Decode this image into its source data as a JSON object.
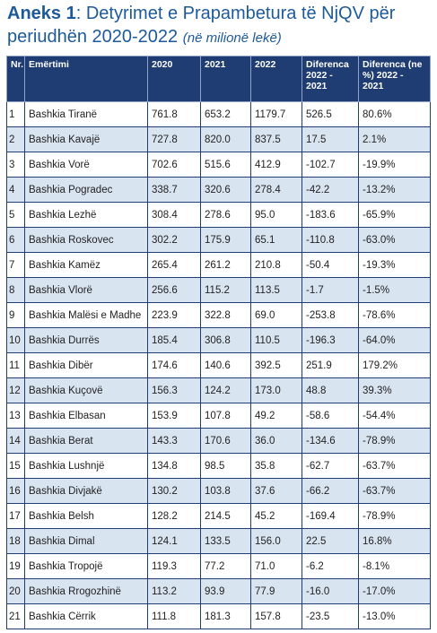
{
  "title": {
    "label": "Aneks 1",
    "text": ": Detyrimet e Prapambetura të NjQV për periudhën 2020-2022",
    "unit": "(në milionë lekë)"
  },
  "table": {
    "headers": [
      "Nr.",
      "Emërtimi",
      "2020",
      "2021",
      "2022",
      "Diferenca 2022 - 2021",
      "Diferenca (ne %) 2022 - 2021"
    ],
    "rows": [
      [
        "1",
        "Bashkia Tiranë",
        "761.8",
        "653.2",
        "1179.7",
        "526.5",
        "80.6%"
      ],
      [
        "2",
        "Bashkia Kavajë",
        "727.8",
        "820.0",
        "837.5",
        "17.5",
        "2.1%"
      ],
      [
        "3",
        "Bashkia Vorë",
        "702.6",
        "515.6",
        "412.9",
        "-102.7",
        "-19.9%"
      ],
      [
        "4",
        "Bashkia Pogradec",
        "338.7",
        "320.6",
        "278.4",
        "-42.2",
        "-13.2%"
      ],
      [
        "5",
        "Bashkia Lezhë",
        "308.4",
        "278.6",
        "95.0",
        "-183.6",
        "-65.9%"
      ],
      [
        "6",
        "Bashkia Roskovec",
        "302.2",
        "175.9",
        "65.1",
        "-110.8",
        "-63.0%"
      ],
      [
        "7",
        "Bashkia Kamëz",
        "265.4",
        "261.2",
        "210.8",
        "-50.4",
        "-19.3%"
      ],
      [
        "8",
        "Bashkia Vlorë",
        "256.6",
        "115.2",
        "113.5",
        "-1.7",
        "-1.5%"
      ],
      [
        "9",
        "Bashkia Malësi e Madhe",
        "223.9",
        "322.8",
        "69.0",
        "-253.8",
        "-78.6%"
      ],
      [
        "10",
        "Bashkia Durrës",
        "185.4",
        "306.8",
        "110.5",
        "-196.3",
        "-64.0%"
      ],
      [
        "11",
        "Bashkia Dibër",
        "174.6",
        "140.6",
        "392.5",
        "251.9",
        "179.2%"
      ],
      [
        "12",
        "Bashkia Kuçovë",
        "156.3",
        "124.2",
        "173.0",
        "48.8",
        "39.3%"
      ],
      [
        "13",
        "Bashkia Elbasan",
        "153.9",
        "107.8",
        "49.2",
        "-58.6",
        "-54.4%"
      ],
      [
        "14",
        "Bashkia Berat",
        "143.3",
        "170.6",
        "36.0",
        "-134.6",
        "-78.9%"
      ],
      [
        "15",
        "Bashkia Lushnjë",
        "134.8",
        "98.5",
        "35.8",
        "-62.7",
        "-63.7%"
      ],
      [
        "16",
        "Bashkia Divjakë",
        "130.2",
        "103.8",
        "37.6",
        "-66.2",
        "-63.7%"
      ],
      [
        "17",
        "Bashkia Belsh",
        "128.2",
        "214.5",
        "45.2",
        "-169.4",
        "-78.9%"
      ],
      [
        "18",
        "Bashkia Dimal",
        "124.1",
        "133.5",
        "156.0",
        "22.5",
        "16.8%"
      ],
      [
        "19",
        "Bashkia Tropojë",
        "119.3",
        "77.2",
        "71.0",
        "-6.2",
        "-8.1%"
      ],
      [
        "20",
        "Bashkia Rrogozhinë",
        "113.2",
        "93.9",
        "77.9",
        "-16.0",
        "-17.0%"
      ],
      [
        "21",
        "Bashkia Cërrik",
        "111.8",
        "181.3",
        "157.8",
        "-23.5",
        "-13.0%"
      ]
    ]
  }
}
